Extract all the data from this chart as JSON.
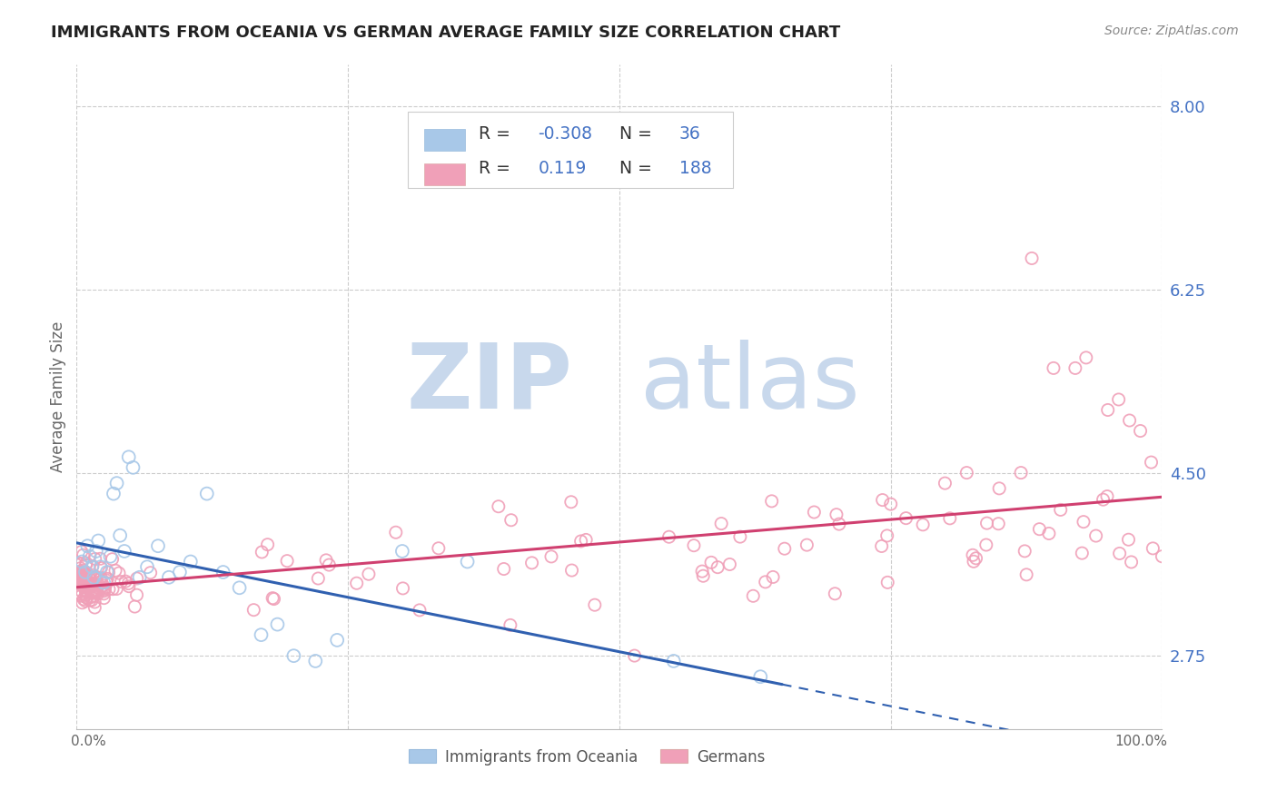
{
  "title": "IMMIGRANTS FROM OCEANIA VS GERMAN AVERAGE FAMILY SIZE CORRELATION CHART",
  "source": "Source: ZipAtlas.com",
  "ylabel": "Average Family Size",
  "y_ticks": [
    2.75,
    4.5,
    6.25,
    8.0
  ],
  "y_tick_labels": [
    "2.75",
    "4.50",
    "6.25",
    "8.00"
  ],
  "ylim": [
    2.05,
    8.4
  ],
  "xlim": [
    0.0,
    100.0
  ],
  "blue_R": "-0.308",
  "blue_N": "36",
  "pink_R": "0.119",
  "pink_N": "188",
  "color_blue": "#a8c8e8",
  "color_pink": "#f0a0b8",
  "color_trend_blue": "#3060b0",
  "color_trend_pink": "#d04070",
  "color_axis_label": "#4472c4",
  "color_title": "#222222",
  "watermark_zip_color": "#c8d8ec",
  "watermark_atlas_color": "#c8d8ec",
  "background_color": "#ffffff",
  "grid_color": "#cccccc",
  "legend_edge_color": "#cccccc"
}
